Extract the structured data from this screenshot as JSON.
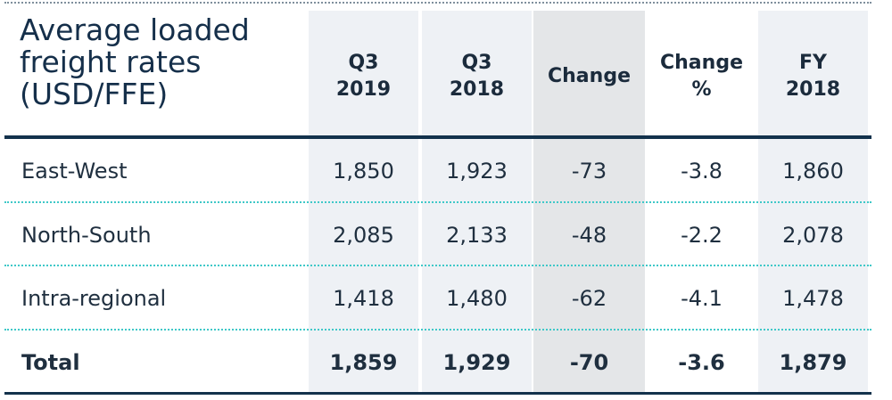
{
  "table": {
    "title": "Average loaded\nfreight rates\n(USD/FFE)",
    "columns": [
      "Q3\n2019",
      "Q3\n2018",
      "Change",
      "Change\n%",
      "FY\n2018"
    ],
    "rows": [
      {
        "label": "East-West",
        "values": [
          "1,850",
          "1,923",
          "-73",
          "-3.8",
          "1,860"
        ]
      },
      {
        "label": "North-South",
        "values": [
          "2,085",
          "2,133",
          "-48",
          "-2.2",
          "2,078"
        ]
      },
      {
        "label": "Intra-regional",
        "values": [
          "1,418",
          "1,480",
          "-62",
          "-4.1",
          "1,478"
        ]
      },
      {
        "label": "Total",
        "values": [
          "1,859",
          "1,929",
          "-70",
          "-3.6",
          "1,879"
        ]
      }
    ]
  },
  "colors": {
    "header_text": "#152f4a",
    "shade_light": "#eef1f5",
    "shade_dark": "#e4e6e8",
    "rule_dark": "#13324c",
    "rule_dotted": "#3fc8c8"
  }
}
